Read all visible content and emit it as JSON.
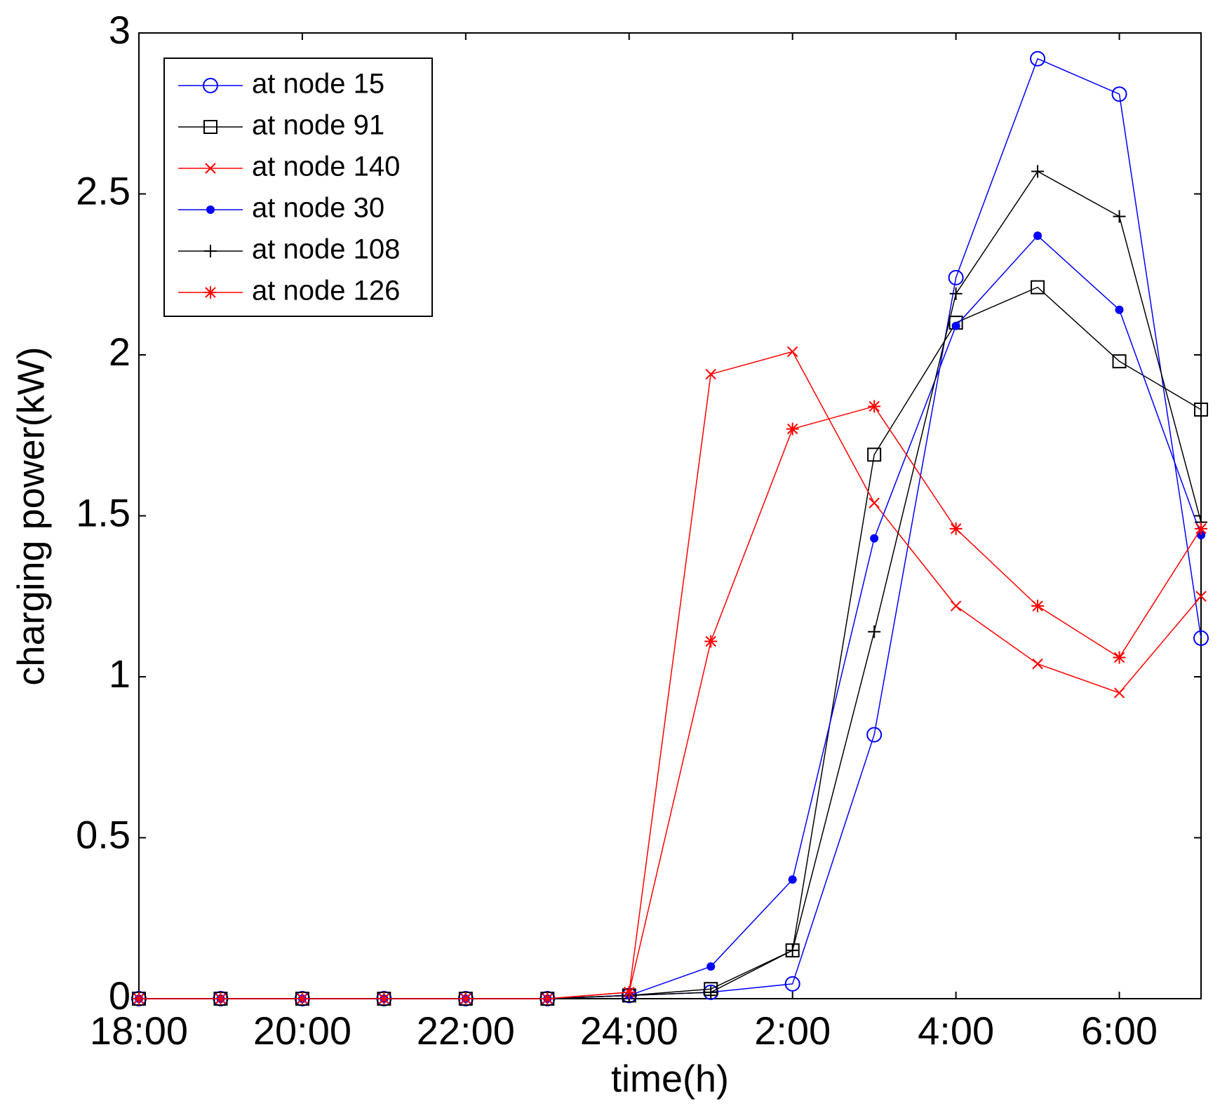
{
  "chart_data": {
    "type": "line",
    "xlabel": "time(h)",
    "ylabel": "charging power(kW)",
    "x": [
      18,
      19,
      20,
      21,
      22,
      23,
      24,
      25,
      26,
      27,
      28,
      29,
      30,
      31
    ],
    "xlim": [
      18,
      31
    ],
    "xticks": [
      {
        "value": 18,
        "label": "18:00"
      },
      {
        "value": 20,
        "label": "20:00"
      },
      {
        "value": 22,
        "label": "22:00"
      },
      {
        "value": 24,
        "label": "24:00"
      },
      {
        "value": 26,
        "label": "2:00"
      },
      {
        "value": 28,
        "label": "4:00"
      },
      {
        "value": 30,
        "label": "6:00"
      }
    ],
    "ylim": [
      0,
      3
    ],
    "yticks": [
      0,
      0.5,
      1,
      1.5,
      2,
      2.5,
      3
    ],
    "legend": "upper left",
    "series": [
      {
        "name": "at node 15",
        "color": "#0000ff",
        "marker": "o",
        "values": [
          0,
          0,
          0,
          0,
          0,
          0,
          0.01,
          0.02,
          0.046,
          0.82,
          2.24,
          2.92,
          2.81,
          1.12
        ]
      },
      {
        "name": "at node 91",
        "color": "#000000",
        "marker": "s",
        "values": [
          0,
          0,
          0,
          0,
          0,
          0,
          0.01,
          0.03,
          0.15,
          1.69,
          2.1,
          2.21,
          1.98,
          1.83
        ]
      },
      {
        "name": "at node 140",
        "color": "#ff0000",
        "marker": "x",
        "values": [
          0,
          0,
          0,
          0,
          0,
          0,
          0.02,
          1.94,
          2.01,
          1.54,
          1.22,
          1.04,
          0.95,
          1.25
        ]
      },
      {
        "name": "at node 30",
        "color": "#0000ff",
        "marker": ".",
        "values": [
          0,
          0,
          0,
          0,
          0,
          0,
          0.01,
          0.1,
          0.37,
          1.43,
          2.09,
          2.37,
          2.14,
          1.44
        ]
      },
      {
        "name": "at node 108",
        "color": "#000000",
        "marker": "+",
        "values": [
          0,
          0,
          0,
          0,
          0,
          0,
          0.01,
          0.02,
          0.15,
          1.14,
          2.19,
          2.57,
          2.43,
          1.48
        ]
      },
      {
        "name": "at node 126",
        "color": "#ff0000",
        "marker": "*",
        "values": [
          0,
          0,
          0,
          0,
          0,
          0,
          0.02,
          1.11,
          1.77,
          1.84,
          1.46,
          1.22,
          1.06,
          1.46
        ]
      }
    ]
  }
}
